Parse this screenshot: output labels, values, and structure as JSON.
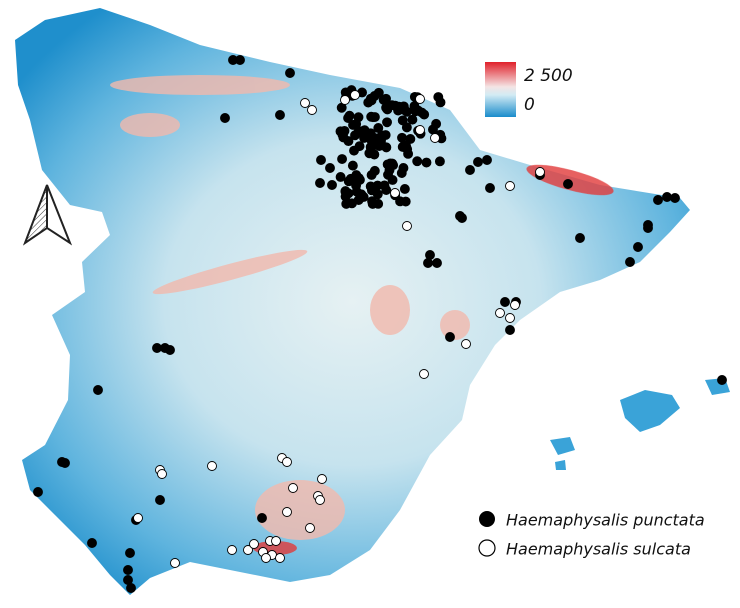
{
  "legend": {
    "scale": {
      "max": "2 500",
      "min": "0"
    },
    "items": [
      {
        "label": "Haemaphysalis punctata"
      },
      {
        "label": "Haemaphysalis sulcata"
      }
    ]
  }
}
